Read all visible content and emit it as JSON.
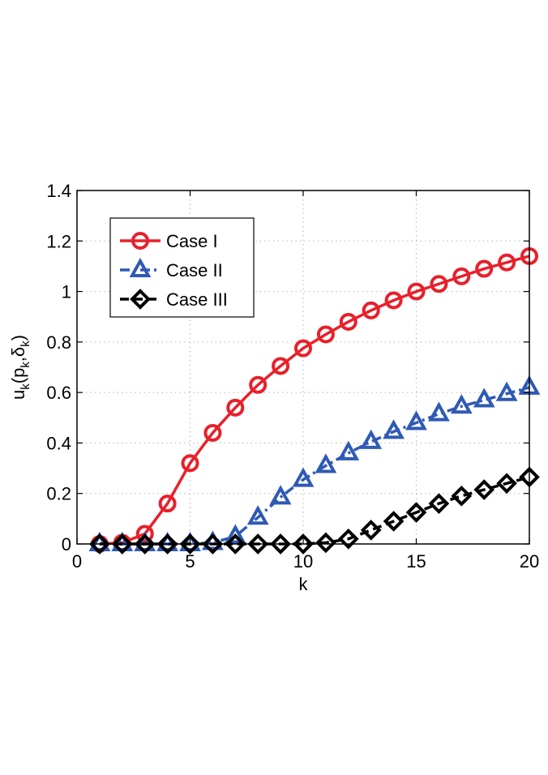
{
  "chart_data": {
    "type": "line",
    "xlabel": "k",
    "ylabel": "u_k(p_k,δ_k)",
    "ylabel_parts": {
      "main": "u",
      "sub1": "k",
      "mid1": "(p",
      "sub2": "k",
      "mid2": ",δ",
      "sub3": "k",
      "end": ")"
    },
    "xlim": [
      0,
      20
    ],
    "ylim": [
      0,
      1.4
    ],
    "xticks": [
      0,
      5,
      10,
      15,
      20
    ],
    "xtick_labels": [
      "0",
      "5",
      "10",
      "15",
      "20"
    ],
    "yticks": [
      0,
      0.2,
      0.4,
      0.6,
      0.8,
      1,
      1.2,
      1.4
    ],
    "ytick_labels": [
      "0",
      "0.2",
      "0.4",
      "0.6",
      "0.8",
      "1",
      "1.2",
      "1.4"
    ],
    "grid": true,
    "legend_position": "top-left",
    "x": [
      1,
      2,
      3,
      4,
      5,
      6,
      7,
      8,
      9,
      10,
      11,
      12,
      13,
      14,
      15,
      16,
      17,
      18,
      19,
      20
    ],
    "series": [
      {
        "name": "Case I",
        "color": "#e8202a",
        "marker": "circle",
        "line_style": "solid",
        "values": [
          0.0,
          0.005,
          0.04,
          0.16,
          0.32,
          0.44,
          0.54,
          0.63,
          0.705,
          0.775,
          0.83,
          0.88,
          0.925,
          0.965,
          1.0,
          1.03,
          1.06,
          1.09,
          1.115,
          1.14
        ]
      },
      {
        "name": "Case II",
        "color": "#2f5ab4",
        "marker": "triangle",
        "line_style": "dash-dot",
        "values": [
          0.0,
          0.0,
          0.0,
          0.0,
          0.0,
          0.005,
          0.03,
          0.105,
          0.185,
          0.255,
          0.31,
          0.36,
          0.405,
          0.445,
          0.48,
          0.515,
          0.545,
          0.57,
          0.595,
          0.62
        ]
      },
      {
        "name": "Case III",
        "color": "#000000",
        "marker": "diamond",
        "line_style": "dashed",
        "values": [
          0.0,
          0.0,
          0.0,
          0.0,
          0.0,
          0.0,
          0.0,
          0.0,
          0.0,
          0.0,
          0.005,
          0.02,
          0.055,
          0.09,
          0.125,
          0.16,
          0.19,
          0.215,
          0.24,
          0.265
        ]
      }
    ]
  }
}
